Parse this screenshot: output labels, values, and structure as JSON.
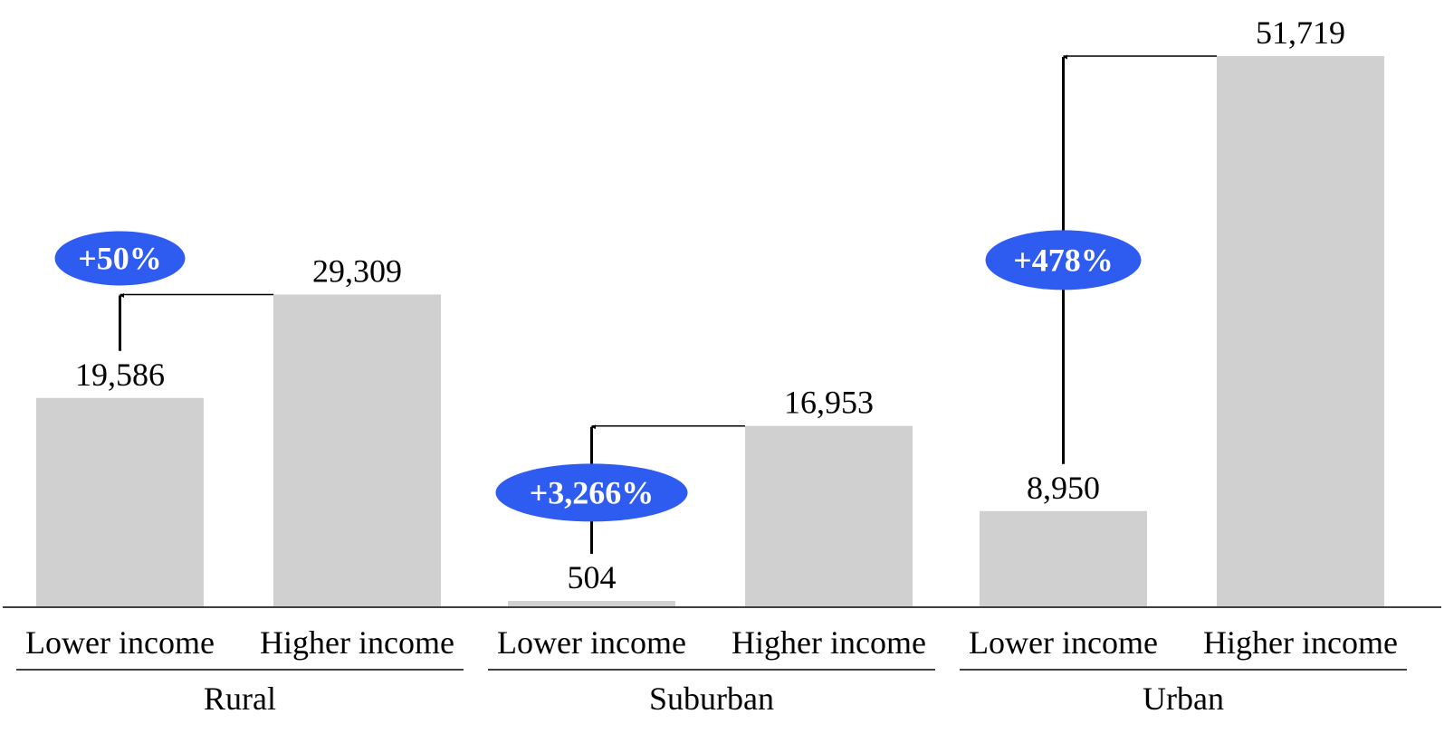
{
  "chart_data": {
    "type": "bar",
    "title": "",
    "xlabel": "",
    "ylabel": "",
    "ylim": [
      0,
      51719
    ],
    "grid": false,
    "legend": "none",
    "groups": [
      {
        "name": "Rural",
        "categories": [
          "Lower income",
          "Higher income"
        ],
        "values": [
          19586,
          29309
        ],
        "value_labels": [
          "19,586",
          "29,309"
        ],
        "change_label": "+50%"
      },
      {
        "name": "Suburban",
        "categories": [
          "Lower income",
          "Higher income"
        ],
        "values": [
          504,
          16953
        ],
        "value_labels": [
          "504",
          "16,953"
        ],
        "change_label": "+3,266%"
      },
      {
        "name": "Urban",
        "categories": [
          "Lower income",
          "Higher income"
        ],
        "values": [
          8950,
          51719
        ],
        "value_labels": [
          "8,950",
          "51,719"
        ],
        "change_label": "+478%"
      }
    ],
    "colors": {
      "bar": "#d0d0d0",
      "badge": "#2e5bf0",
      "axis": "#000000"
    }
  }
}
